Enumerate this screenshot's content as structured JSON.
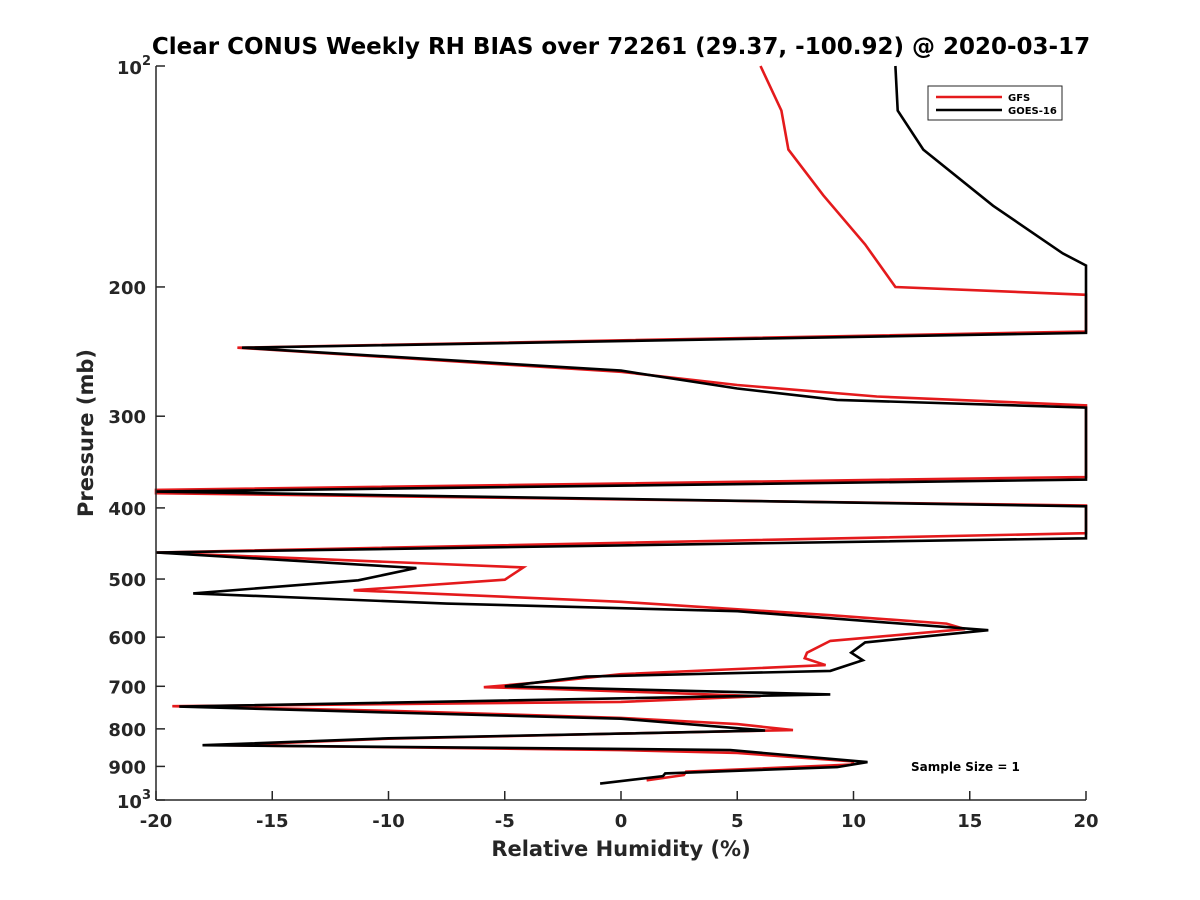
{
  "chart_data": {
    "type": "line",
    "title": "Clear CONUS Weekly RH BIAS over 72261 (29.37, -100.92) @ 2020-03-17",
    "xlabel": "Relative Humidity (%)",
    "ylabel": "Pressure (mb)",
    "xlim": [
      -20,
      20
    ],
    "ylim": [
      100,
      1000
    ],
    "y_scale": "log",
    "y_reversed": true,
    "grid": false,
    "legend_position": "top-right",
    "x_ticks": [
      -20,
      -15,
      -10,
      -5,
      0,
      5,
      10,
      15,
      20
    ],
    "x_tick_labels": [
      "-20",
      "-15",
      "-10",
      "-5",
      "0",
      "5",
      "10",
      "15",
      "20"
    ],
    "y_ticks": [
      100,
      200,
      300,
      400,
      500,
      600,
      700,
      800,
      900,
      1000
    ],
    "y_tick_labels": [
      {
        "base": "10",
        "exp": "2"
      },
      {
        "base": "200",
        "exp": ""
      },
      {
        "base": "300",
        "exp": ""
      },
      {
        "base": "400",
        "exp": ""
      },
      {
        "base": "500",
        "exp": ""
      },
      {
        "base": "600",
        "exp": ""
      },
      {
        "base": "700",
        "exp": ""
      },
      {
        "base": "800",
        "exp": ""
      },
      {
        "base": "900",
        "exp": ""
      },
      {
        "base": "10",
        "exp": "3"
      }
    ],
    "annotation": "Sample Size = 1",
    "series": [
      {
        "name": "GFS",
        "color": "#e41a1c",
        "points": [
          [
            6.0,
            100
          ],
          [
            6.9,
            115
          ],
          [
            7.2,
            130
          ],
          [
            8.7,
            150
          ],
          [
            10.5,
            175
          ],
          [
            11.8,
            200
          ],
          [
            20.0,
            205
          ],
          [
            20.0,
            230
          ],
          [
            -16.5,
            242
          ],
          [
            0.0,
            261
          ],
          [
            5.0,
            272
          ],
          [
            11.0,
            282
          ],
          [
            20.0,
            290
          ],
          [
            20.0,
            363
          ],
          [
            -20.0,
            378
          ],
          [
            -20.0,
            382
          ],
          [
            20.0,
            397
          ],
          [
            20.0,
            433
          ],
          [
            -20.0,
            460
          ],
          [
            -4.2,
            482
          ],
          [
            -5.0,
            501
          ],
          [
            -11.5,
            518
          ],
          [
            0.0,
            537
          ],
          [
            9.0,
            560
          ],
          [
            14.0,
            575
          ],
          [
            14.8,
            585
          ],
          [
            9.0,
            607
          ],
          [
            8.0,
            630
          ],
          [
            7.9,
            641
          ],
          [
            8.8,
            655
          ],
          [
            0.0,
            674
          ],
          [
            -2.5,
            687
          ],
          [
            -5.9,
            702
          ],
          [
            -3.0,
            706
          ],
          [
            6.0,
            722
          ],
          [
            0.0,
            735
          ],
          [
            -19.3,
            745
          ],
          [
            -10.0,
            756
          ],
          [
            0.0,
            773
          ],
          [
            5.0,
            788
          ],
          [
            7.4,
            803
          ],
          [
            0.0,
            812
          ],
          [
            -10.0,
            825
          ],
          [
            -17.0,
            842
          ],
          [
            0.0,
            855
          ],
          [
            5.0,
            863
          ],
          [
            10.0,
            886
          ],
          [
            9.9,
            895
          ],
          [
            2.8,
            915
          ],
          [
            2.7,
            925
          ],
          [
            1.1,
            940
          ]
        ]
      },
      {
        "name": "GOES-16",
        "color": "#000000",
        "points": [
          [
            11.8,
            100
          ],
          [
            11.9,
            115
          ],
          [
            13.0,
            130
          ],
          [
            16.0,
            155
          ],
          [
            19.0,
            180
          ],
          [
            20.0,
            187
          ],
          [
            20.0,
            231
          ],
          [
            -16.3,
            242
          ],
          [
            0.0,
            260
          ],
          [
            5.0,
            275
          ],
          [
            9.3,
            285
          ],
          [
            20.0,
            292
          ],
          [
            20.0,
            366
          ],
          [
            -20.0,
            380
          ],
          [
            20.0,
            398
          ],
          [
            20.0,
            440
          ],
          [
            -20.0,
            460
          ],
          [
            -8.8,
            483
          ],
          [
            -11.3,
            502
          ],
          [
            -18.4,
            523
          ],
          [
            -7.5,
            540
          ],
          [
            5.0,
            553
          ],
          [
            15.8,
            587
          ],
          [
            10.5,
            610
          ],
          [
            9.9,
            630
          ],
          [
            10.4,
            645
          ],
          [
            9.0,
            667
          ],
          [
            -1.5,
            679
          ],
          [
            -5.0,
            700
          ],
          [
            9.0,
            718
          ],
          [
            -19.0,
            746
          ],
          [
            -10.0,
            760
          ],
          [
            0.0,
            775
          ],
          [
            6.2,
            804
          ],
          [
            0.0,
            812
          ],
          [
            -10.0,
            824
          ],
          [
            -18.0,
            842
          ],
          [
            0.0,
            852
          ],
          [
            4.7,
            855
          ],
          [
            10.6,
            888
          ],
          [
            9.3,
            902
          ],
          [
            1.9,
            920
          ],
          [
            1.8,
            928
          ],
          [
            -0.9,
            950
          ]
        ]
      }
    ]
  }
}
